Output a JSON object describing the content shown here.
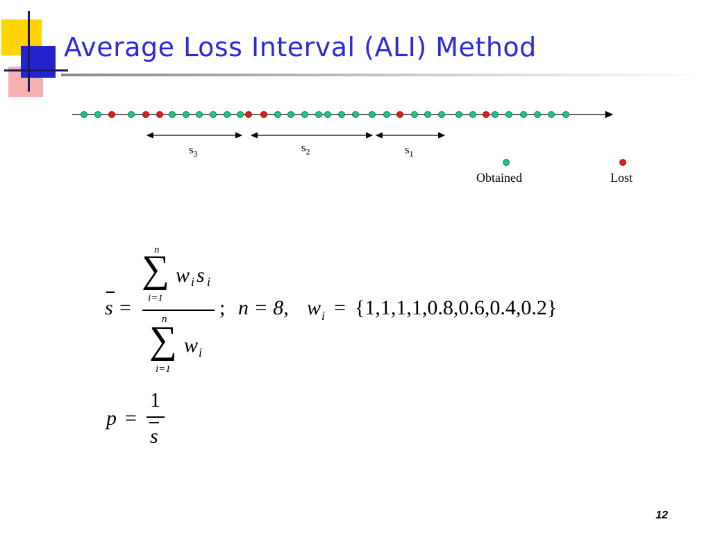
{
  "slide": {
    "title": "Average Loss Interval (ALI) Method",
    "page_number": "12"
  },
  "timeline": {
    "packets": [
      "o",
      "o",
      "l",
      "o",
      "l",
      "l",
      "o",
      "o",
      "o",
      "o",
      "o",
      "o",
      "l",
      "l",
      "o",
      "o",
      "o",
      "o",
      "o",
      "o",
      "o",
      "o",
      "o",
      "l",
      "o",
      "o",
      "o",
      "o",
      "o",
      "l",
      "o",
      "o",
      "o",
      "o",
      "o",
      "o",
      "o",
      "o"
    ],
    "intervals": [
      {
        "label": "s",
        "sub": "3"
      },
      {
        "label": "s",
        "sub": "2"
      },
      {
        "label": "s",
        "sub": "1"
      }
    ]
  },
  "legend": {
    "obtained": "Obtained",
    "lost": "Lost"
  },
  "colors": {
    "obtained": "#19c58c",
    "lost": "#e01b1b",
    "title": "#2a2adc"
  },
  "formula": {
    "s": "s",
    "eq": "=",
    "sum": "∑",
    "n": "n",
    "i1": "i=1",
    "w": "w",
    "i": "i",
    "sep": ";",
    "n_value": "n = 8,",
    "weights_eq": "=",
    "weights": "{1,1,1,1,0.8,0.6,0.4,0.2}",
    "p": "p",
    "one": "1"
  }
}
